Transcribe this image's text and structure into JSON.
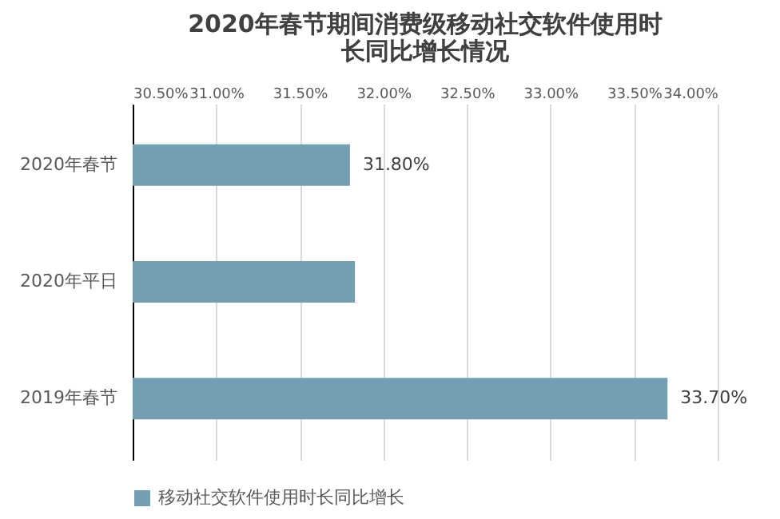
{
  "chart_data": {
    "type": "bar",
    "orientation": "horizontal",
    "title": [
      "2020年春节期间消费级移动社交软件使用时",
      "长同比增长情况"
    ],
    "categories": [
      "2020年春节",
      "2020年平日",
      "2019年春节"
    ],
    "series": [
      {
        "name": "移动社交软件使用时长同比增长",
        "color": "#739fb3",
        "values": [
          31.8,
          31.83,
          33.7
        ]
      }
    ],
    "value_labels": [
      "31.80%",
      null,
      "33.70%"
    ],
    "xlim": [
      30.5,
      34.0
    ],
    "xticks": [
      {
        "value": 30.5,
        "label": "30.50%"
      },
      {
        "value": 31.0,
        "label": "31.00%"
      },
      {
        "value": 31.5,
        "label": "31.50%"
      },
      {
        "value": 32.0,
        "label": "32.00%"
      },
      {
        "value": 32.5,
        "label": "32.50%"
      },
      {
        "value": 33.0,
        "label": "33.00%"
      },
      {
        "value": 33.5,
        "label": "33.50%"
      },
      {
        "value": 34.0,
        "label": "34.00%"
      }
    ],
    "grid": "x",
    "legend": "bottom"
  }
}
